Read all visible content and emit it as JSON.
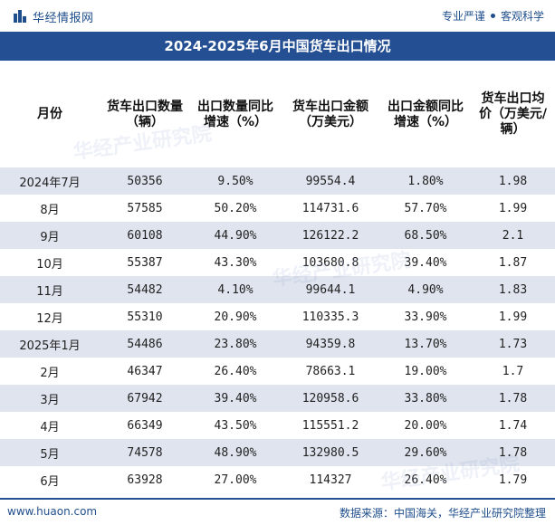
{
  "brand": {
    "name": "华经情报网",
    "slogan_left": "专业严谨",
    "slogan_right": "客观科学"
  },
  "title": "2024-2025年6月中国货车出口情况",
  "table": {
    "headers": [
      "月份",
      "货车出口数量（辆）",
      "出口数量同比增速（%）",
      "货车出口金额（万美元）",
      "出口金额同比增速（%）",
      "货车出口均价（万美元/辆）"
    ],
    "rows": [
      [
        "2024年7月",
        "50356",
        "9.50%",
        "99554.4",
        "1.80%",
        "1.98"
      ],
      [
        "8月",
        "57585",
        "50.20%",
        "114731.6",
        "57.70%",
        "1.99"
      ],
      [
        "9月",
        "60108",
        "44.90%",
        "126122.2",
        "68.50%",
        "2.1"
      ],
      [
        "10月",
        "55387",
        "43.30%",
        "103680.8",
        "39.40%",
        "1.87"
      ],
      [
        "11月",
        "54482",
        "4.10%",
        "99644.1",
        "4.90%",
        "1.83"
      ],
      [
        "12月",
        "55310",
        "20.90%",
        "110335.3",
        "33.90%",
        "1.99"
      ],
      [
        "2025年1月",
        "54486",
        "23.80%",
        "94359.8",
        "13.70%",
        "1.73"
      ],
      [
        "2月",
        "46347",
        "26.40%",
        "78663.1",
        "19.00%",
        "1.7"
      ],
      [
        "3月",
        "67942",
        "39.40%",
        "120958.6",
        "33.80%",
        "1.78"
      ],
      [
        "4月",
        "66349",
        "43.50%",
        "115551.2",
        "20.00%",
        "1.74"
      ],
      [
        "5月",
        "74578",
        "48.90%",
        "132980.5",
        "29.60%",
        "1.78"
      ],
      [
        "6月",
        "63928",
        "27.00%",
        "114327",
        "26.40%",
        "1.79"
      ]
    ]
  },
  "footer": {
    "site": "www.huaon.com",
    "source": "数据来源：中国海关，华经产业研究院整理"
  },
  "watermark": "华经产业研究院",
  "colors": {
    "header_bg": "#244f93",
    "stripe": "#dfe4ee",
    "brand": "#1f4e8c"
  }
}
